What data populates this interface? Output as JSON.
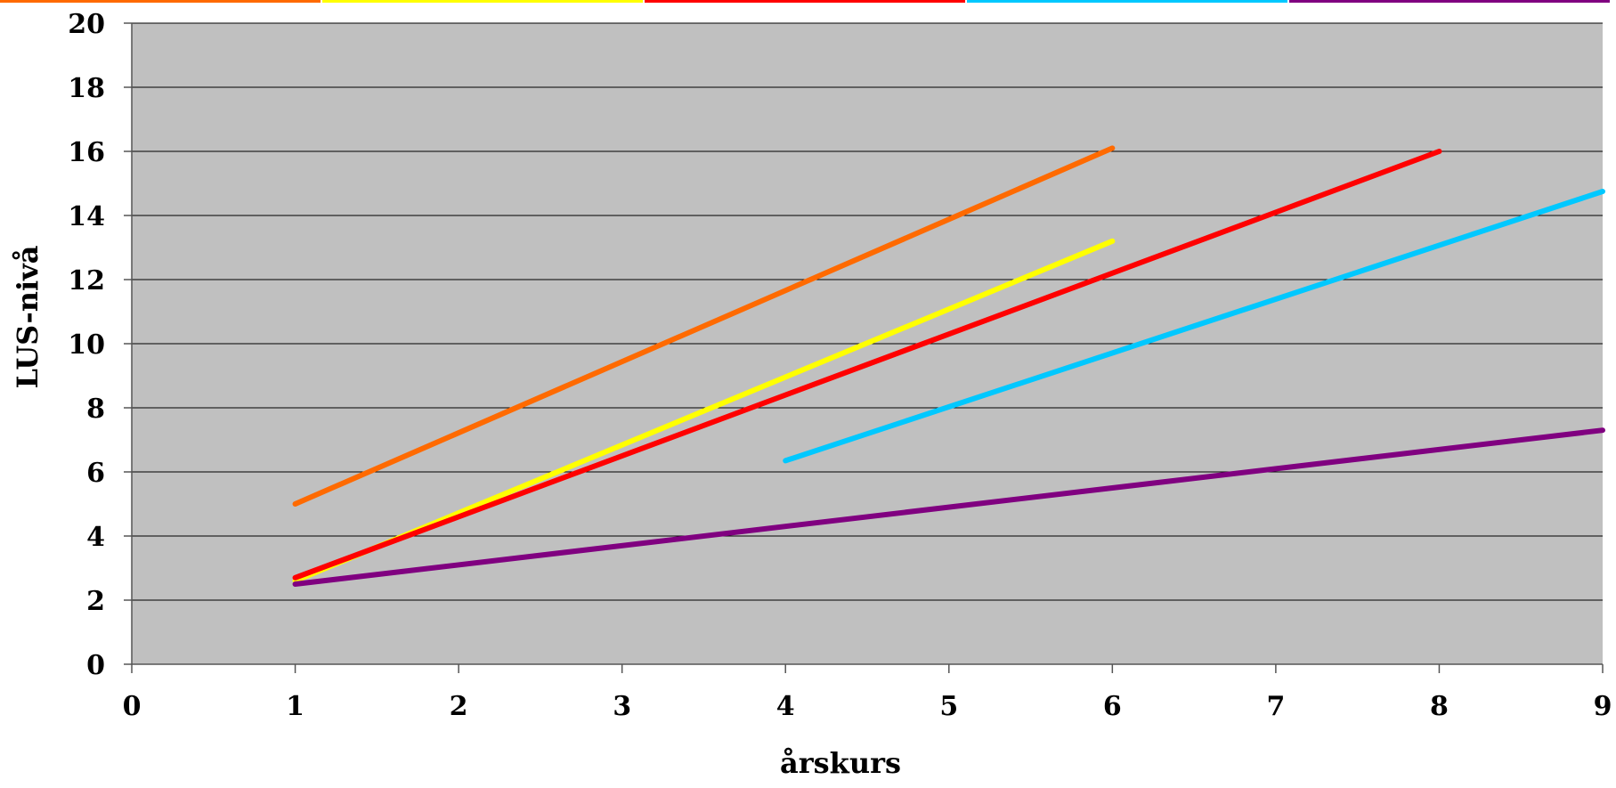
{
  "chart_data": {
    "type": "line",
    "title": "",
    "xlabel": "årskurs",
    "ylabel": "LUS-nivå",
    "xlim": [
      0,
      9
    ],
    "ylim": [
      0,
      20
    ],
    "x_ticks": [
      0,
      1,
      2,
      3,
      4,
      5,
      6,
      7,
      8,
      9
    ],
    "y_ticks": [
      0,
      2,
      4,
      6,
      8,
      10,
      12,
      14,
      16,
      18,
      20
    ],
    "grid": true,
    "background": "#c0c0c0",
    "legend": "top",
    "series": [
      {
        "color": "#ff6a00",
        "points": [
          [
            1,
            5.0
          ],
          [
            6,
            16.1
          ]
        ]
      },
      {
        "color": "#ffff00",
        "points": [
          [
            1,
            2.6
          ],
          [
            6,
            13.2
          ]
        ]
      },
      {
        "color": "#ff0000",
        "points": [
          [
            1,
            2.7
          ],
          [
            8,
            16.0
          ]
        ]
      },
      {
        "color": "#00c8ff",
        "points": [
          [
            4,
            6.35
          ],
          [
            9,
            14.75
          ]
        ]
      },
      {
        "color": "#800080",
        "points": [
          [
            1,
            2.5
          ],
          [
            9,
            7.3
          ]
        ]
      }
    ]
  }
}
